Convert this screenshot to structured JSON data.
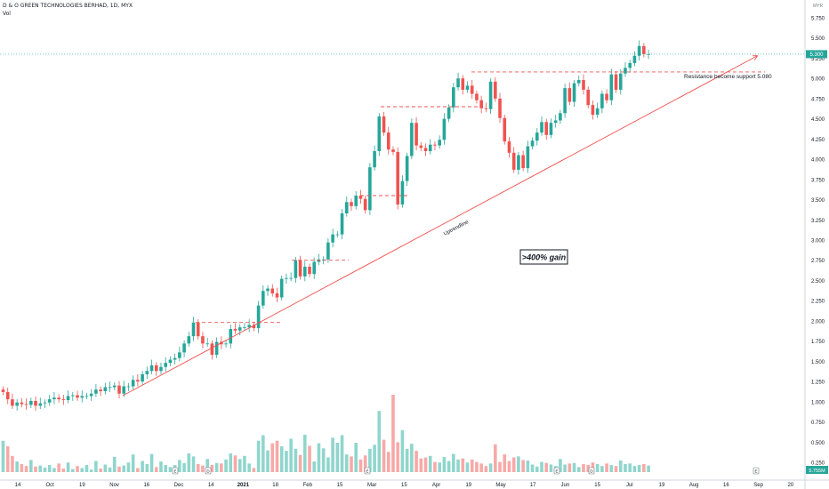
{
  "header": {
    "title": "D & O GREEN TECHNOLOGIES BERHAD, 1D, MYX",
    "sub": "Vol",
    "currency": "MYR"
  },
  "price_tag": "5.300",
  "volume_tag": "5.755M",
  "colors": {
    "up": "#26a69a",
    "down": "#ef5350",
    "vol_up": "#8fd6cd",
    "vol_down": "#f7a9a7",
    "trend": "#ef5350",
    "tag": "#26a69a"
  },
  "annotations": {
    "trend_label": "Uptrendline",
    "resistance_label": "Resistance become support 5.080",
    "gain_label": ">400% gain"
  },
  "event_markers": [
    "E",
    "D",
    "E",
    "E",
    "D",
    "E"
  ],
  "chart_data": {
    "type": "candlestick",
    "ylim": [
      0.0,
      5.875
    ],
    "y_axis_ticks": [
      "5.750",
      "5.500",
      "5.250",
      "5.000",
      "4.750",
      "4.500",
      "4.250",
      "4.000",
      "3.750",
      "3.500",
      "3.250",
      "3.000",
      "2.750",
      "2.500",
      "2.250",
      "2.000",
      "1.750",
      "1.500",
      "1.250",
      "1.000",
      "0.750",
      "0.500",
      "0.250"
    ],
    "x_axis_labels": [
      "14",
      "Oct",
      "19",
      "Nov",
      "16",
      "Dec",
      "14",
      "2021",
      "18",
      "Feb",
      "15",
      "Mar",
      "15",
      "Apr",
      "19",
      "May",
      "17",
      "Jun",
      "15",
      "Jul",
      "19",
      "Aug",
      "16",
      "Sep",
      "20"
    ],
    "closes": [
      1.12,
      1.03,
      0.95,
      0.99,
      0.97,
      0.96,
      1.01,
      0.95,
      0.98,
      0.99,
      1.03,
      1.05,
      1.03,
      1.02,
      1.07,
      1.08,
      1.05,
      1.07,
      1.07,
      1.1,
      1.15,
      1.13,
      1.18,
      1.18,
      1.2,
      1.1,
      1.19,
      1.19,
      1.27,
      1.25,
      1.34,
      1.38,
      1.45,
      1.38,
      1.43,
      1.48,
      1.52,
      1.54,
      1.61,
      1.72,
      1.81,
      1.98,
      1.81,
      1.72,
      1.72,
      1.58,
      1.74,
      1.71,
      1.72,
      1.9,
      1.88,
      1.92,
      1.92,
      1.95,
      1.91,
      2.19,
      2.37,
      2.4,
      2.34,
      2.29,
      2.52,
      2.53,
      2.53,
      2.75,
      2.55,
      2.67,
      2.58,
      2.73,
      2.76,
      2.76,
      2.97,
      3.07,
      3.07,
      3.33,
      3.47,
      3.42,
      3.55,
      3.51,
      3.37,
      3.9,
      4.1,
      4.53,
      4.33,
      4.12,
      4.09,
      3.44,
      3.73,
      4.04,
      4.45,
      4.17,
      4.14,
      4.1,
      4.18,
      4.17,
      4.24,
      4.5,
      4.64,
      4.89,
      5.0,
      4.86,
      4.91,
      4.81,
      4.73,
      4.63,
      4.62,
      4.96,
      4.75,
      4.51,
      4.22,
      4.08,
      3.87,
      4.05,
      3.89,
      4.16,
      4.23,
      4.33,
      4.46,
      4.3,
      4.45,
      4.48,
      4.57,
      4.88,
      4.71,
      4.94,
      4.98,
      4.86,
      4.67,
      4.55,
      4.63,
      4.81,
      4.73,
      5.05,
      4.86,
      5.06,
      5.13,
      5.19,
      5.28,
      5.4,
      5.3,
      5.3
    ],
    "volumes": [
      0.62,
      0.51,
      0.32,
      0.21,
      0.16,
      0.12,
      0.24,
      0.11,
      0.13,
      0.09,
      0.14,
      0.08,
      0.17,
      0.07,
      0.19,
      0.06,
      0.12,
      0.08,
      0.14,
      0.05,
      0.22,
      0.07,
      0.15,
      0.09,
      0.3,
      0.11,
      0.13,
      0.19,
      0.35,
      0.08,
      0.22,
      0.16,
      0.36,
      0.1,
      0.21,
      0.14,
      0.1,
      0.14,
      0.24,
      0.18,
      0.37,
      0.31,
      0.16,
      0.13,
      0.26,
      0.14,
      0.18,
      0.17,
      0.25,
      0.37,
      0.33,
      0.26,
      0.32,
      0.17,
      0.08,
      0.62,
      0.73,
      0.43,
      0.57,
      0.62,
      0.51,
      0.42,
      0.66,
      0.46,
      0.34,
      0.74,
      0.52,
      0.21,
      0.57,
      0.47,
      0.29,
      0.68,
      0.58,
      0.73,
      0.35,
      0.31,
      0.58,
      0.25,
      0.33,
      0.46,
      0.54,
      1.21,
      0.64,
      0.4,
      1.53,
      0.59,
      0.83,
      0.46,
      0.56,
      0.42,
      0.27,
      0.29,
      0.32,
      0.2,
      0.19,
      0.3,
      0.22,
      0.36,
      0.25,
      0.27,
      0.19,
      0.25,
      0.2,
      0.17,
      0.12,
      0.17,
      0.55,
      0.2,
      0.35,
      0.22,
      0.29,
      0.31,
      0.24,
      0.23,
      0.15,
      0.11,
      0.2,
      0.18,
      0.15,
      0.12,
      0.26,
      0.15,
      0.17,
      0.18,
      0.1,
      0.16,
      0.14,
      0.19,
      0.16,
      0.12,
      0.17,
      0.14,
      0.12,
      0.23,
      0.16,
      0.17,
      0.12,
      0.14,
      0.16,
      0.13
    ]
  }
}
